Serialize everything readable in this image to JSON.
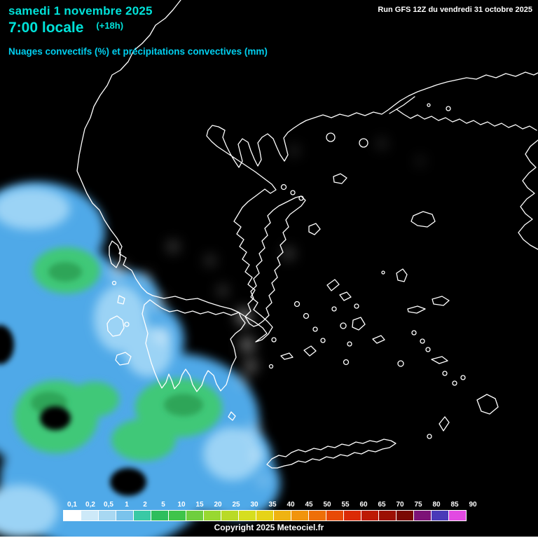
{
  "header": {
    "date_line": "samedi 1 novembre 2025",
    "time_line": "7:00 locale",
    "forecast_offset": "(+18h)",
    "run_info": "Run GFS 12Z du vendredi 31 octobre 2025",
    "subtitle": "Nuages convectifs (%) et précipitations convectives (mm)"
  },
  "legend": {
    "values": [
      "0,1",
      "0,2",
      "0,5",
      "1",
      "2",
      "5",
      "10",
      "15",
      "20",
      "25",
      "30",
      "35",
      "40",
      "45",
      "50",
      "55",
      "60",
      "65",
      "70",
      "75",
      "80",
      "85",
      "90"
    ],
    "colors": [
      "#FFFFFF",
      "#CDE9F8",
      "#A8D8F2",
      "#7AC3EC",
      "#39C9A5",
      "#2EBE5C",
      "#3FC44A",
      "#6FCE3E",
      "#98D831",
      "#B9DA27",
      "#D6DE1F",
      "#E6D318",
      "#EFB312",
      "#F1940C",
      "#EE6F08",
      "#E84A06",
      "#DB2B05",
      "#BD1A04",
      "#9C1004",
      "#7A0903",
      "#7D1277",
      "#4A3AB8",
      "#E24AE2"
    ]
  },
  "footer": {
    "copyright": "Copyright 2025 Meteociel.fr"
  },
  "map": {
    "colors": {
      "background": "#000000",
      "coastline": "#FFFFFF",
      "precip_blue": "#4FA9E8",
      "precip_blue_light": "#9BD3F5",
      "precip_green": "#3FC878",
      "precip_green_dark": "#2EA558",
      "cloud_grey": "#FFFFFF"
    }
  }
}
